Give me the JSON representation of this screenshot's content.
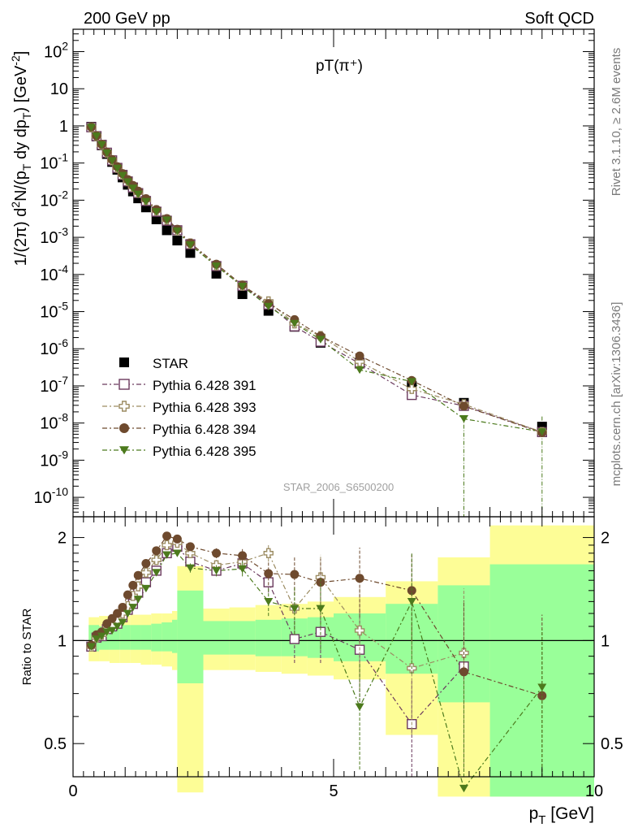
{
  "header": {
    "left": "200 GeV pp",
    "right": "Soft QCD",
    "plot_title": "pT(π⁺)",
    "side_top": "Rivet 3.1.10, ≥ 2.6M events",
    "side_bottom": "mcplots.cern.ch [arXiv:1306.3436]",
    "watermark": "STAR_2006_S6500200"
  },
  "chart_data": [
    {
      "type": "scatter",
      "panel": "main",
      "ylabel_parts": [
        "1/(2π) d",
        "2",
        "N/(p",
        "T",
        " dy dp",
        "T",
        ") [GeV",
        "-2",
        "]"
      ],
      "yscale": "log",
      "ylim": [
        3e-11,
        400
      ],
      "xlim": [
        0,
        10
      ],
      "y_ticks": [
        {
          "v": 1e-10,
          "b": "10",
          "e": "-10"
        },
        {
          "v": 1e-09,
          "b": "10",
          "e": "-9"
        },
        {
          "v": 1e-08,
          "b": "10",
          "e": "-8"
        },
        {
          "v": 1e-07,
          "b": "10",
          "e": "-7"
        },
        {
          "v": 1e-06,
          "b": "10",
          "e": "-6"
        },
        {
          "v": 1e-05,
          "b": "10",
          "e": "-5"
        },
        {
          "v": 0.0001,
          "b": "10",
          "e": "-4"
        },
        {
          "v": 0.001,
          "b": "10",
          "e": "-3"
        },
        {
          "v": 0.01,
          "b": "10",
          "e": "-2"
        },
        {
          "v": 0.1,
          "b": "10",
          "e": "-1"
        },
        {
          "v": 1,
          "b": "1",
          "e": ""
        },
        {
          "v": 10,
          "b": "10",
          "e": ""
        },
        {
          "v": 100,
          "b": "10",
          "e": "2"
        }
      ],
      "legend_position": "lower-left",
      "x": [
        0.35,
        0.45,
        0.55,
        0.65,
        0.75,
        0.85,
        0.95,
        1.05,
        1.15,
        1.25,
        1.4,
        1.6,
        1.8,
        2.0,
        2.25,
        2.75,
        3.25,
        3.75,
        4.25,
        4.75,
        5.5,
        6.5,
        7.5,
        9.0
      ],
      "series": [
        {
          "name": "STAR",
          "color": "#000000",
          "marker": "square-filled",
          "line": false,
          "values": [
            0.95,
            0.52,
            0.3,
            0.175,
            0.107,
            0.066,
            0.041,
            0.026,
            0.0172,
            0.0112,
            0.0064,
            0.00305,
            0.00155,
            0.00082,
            0.00038,
            0.000105,
            2.95e-05,
            1.05e-05,
            3.9e-06,
            1.45e-06,
            4.2e-07,
            1e-07,
            3.5e-08,
            8e-09
          ]
        },
        {
          "name": "Pythia 6.428 391",
          "color": "#6b3a5e",
          "marker": "square-open",
          "line": true,
          "values": [
            0.92,
            0.53,
            0.31,
            0.19,
            0.118,
            0.074,
            0.048,
            0.032,
            0.022,
            0.0155,
            0.0095,
            0.0049,
            0.0028,
            0.00155,
            0.00065,
            0.000168,
            4.95e-05,
            1.55e-05,
            4e-06,
            1.55e-06,
            4e-07,
            5.7e-08,
            2.9e-08,
            5.7e-09
          ]
        },
        {
          "name": "Pythia 6.428 393",
          "color": "#9c8c62",
          "marker": "cross-open",
          "line": true,
          "values": [
            0.91,
            0.53,
            0.31,
            0.19,
            0.118,
            0.075,
            0.049,
            0.033,
            0.023,
            0.016,
            0.0102,
            0.0053,
            0.003,
            0.00155,
            0.00068,
            0.000175,
            5e-05,
            1.88e-05,
            4.8e-06,
            2.2e-06,
            4.5e-07,
            8.3e-08,
            3.2e-08,
            5.7e-09
          ]
        },
        {
          "name": "Pythia 6.428 394",
          "color": "#6e4a2e",
          "marker": "circle-filled",
          "line": true,
          "values": [
            0.93,
            0.54,
            0.32,
            0.196,
            0.124,
            0.08,
            0.052,
            0.036,
            0.025,
            0.0175,
            0.011,
            0.0056,
            0.0032,
            0.00165,
            0.0007,
            0.00019,
            5.2e-05,
            1.65e-05,
            6.1e-06,
            2.2e-06,
            6.4e-07,
            1.4e-07,
            2.85e-08,
            5.5e-09
          ]
        },
        {
          "name": "Pythia 6.428 395",
          "color": "#4c7a1d",
          "marker": "triangle-down-filled",
          "line": true,
          "values": [
            0.91,
            0.53,
            0.31,
            0.185,
            0.115,
            0.072,
            0.046,
            0.031,
            0.021,
            0.0145,
            0.0092,
            0.0049,
            0.0029,
            0.00148,
            0.00062,
            0.000168,
            4.8e-05,
            1.38e-05,
            4.8e-06,
            1.78e-06,
            2.7e-07,
            1.3e-07,
            1.3e-08,
            5.8e-09
          ]
        }
      ]
    },
    {
      "type": "scatter",
      "panel": "ratio",
      "ylabel": "Ratio to STAR",
      "xlabel_main": "p",
      "xlabel_sub": "T",
      "xlabel_unit": " [GeV]",
      "yscale": "log",
      "ylim": [
        0.4,
        2.3
      ],
      "xlim": [
        0,
        10
      ],
      "x_ticks": [
        {
          "v": 0,
          "label": "0"
        },
        {
          "v": 5,
          "label": "5"
        },
        {
          "v": 10,
          "label": "10"
        }
      ],
      "y_ticks": [
        {
          "v": 0.5,
          "label": "0.5"
        },
        {
          "v": 1,
          "label": "1"
        },
        {
          "v": 2,
          "label": "2"
        }
      ],
      "bands": [
        {
          "x0": 0.3,
          "x1": 0.5,
          "g": [
            0.93,
            1.11
          ],
          "y": [
            0.87,
            1.17
          ]
        },
        {
          "x0": 0.5,
          "x1": 0.7,
          "g": [
            0.94,
            1.1
          ],
          "y": [
            0.87,
            1.18
          ]
        },
        {
          "x0": 0.7,
          "x1": 0.9,
          "g": [
            0.94,
            1.1
          ],
          "y": [
            0.86,
            1.18
          ]
        },
        {
          "x0": 0.9,
          "x1": 1.1,
          "g": [
            0.94,
            1.11
          ],
          "y": [
            0.86,
            1.18
          ]
        },
        {
          "x0": 1.1,
          "x1": 1.3,
          "g": [
            0.94,
            1.11
          ],
          "y": [
            0.86,
            1.19
          ]
        },
        {
          "x0": 1.3,
          "x1": 1.5,
          "g": [
            0.94,
            1.11
          ],
          "y": [
            0.85,
            1.19
          ]
        },
        {
          "x0": 1.5,
          "x1": 1.7,
          "g": [
            0.93,
            1.12
          ],
          "y": [
            0.85,
            1.2
          ]
        },
        {
          "x0": 1.7,
          "x1": 1.9,
          "g": [
            0.93,
            1.13
          ],
          "y": [
            0.84,
            1.2
          ]
        },
        {
          "x0": 1.9,
          "x1": 2.0,
          "g": [
            0.92,
            1.15
          ],
          "y": [
            0.82,
            1.22
          ]
        },
        {
          "x0": 2.0,
          "x1": 2.5,
          "g": [
            0.75,
            1.4
          ],
          "y": [
            0.36,
            1.65
          ]
        },
        {
          "x0": 2.5,
          "x1": 3.0,
          "g": [
            0.91,
            1.14
          ],
          "y": [
            0.82,
            1.24
          ]
        },
        {
          "x0": 3.0,
          "x1": 3.5,
          "g": [
            0.91,
            1.14
          ],
          "y": [
            0.82,
            1.25
          ]
        },
        {
          "x0": 3.5,
          "x1": 4.0,
          "g": [
            0.9,
            1.15
          ],
          "y": [
            0.81,
            1.27
          ]
        },
        {
          "x0": 4.0,
          "x1": 4.5,
          "g": [
            0.9,
            1.16
          ],
          "y": [
            0.8,
            1.28
          ]
        },
        {
          "x0": 4.5,
          "x1": 5.0,
          "g": [
            0.89,
            1.17
          ],
          "y": [
            0.79,
            1.3
          ]
        },
        {
          "x0": 5.0,
          "x1": 6.0,
          "g": [
            0.87,
            1.2
          ],
          "y": [
            0.77,
            1.34
          ]
        },
        {
          "x0": 6.0,
          "x1": 7.0,
          "g": [
            0.8,
            1.28
          ],
          "y": [
            0.53,
            1.49
          ]
        },
        {
          "x0": 7.0,
          "x1": 8.0,
          "g": [
            0.66,
            1.45
          ],
          "y": [
            0.35,
            1.75
          ]
        },
        {
          "x0": 8.0,
          "x1": 10.0,
          "g": [
            0.35,
            1.67
          ],
          "y": [
            0.35,
            2.17
          ]
        }
      ],
      "x": [
        0.35,
        0.45,
        0.55,
        0.65,
        0.75,
        0.85,
        0.95,
        1.05,
        1.15,
        1.25,
        1.4,
        1.6,
        1.8,
        2.0,
        2.25,
        2.75,
        3.25,
        3.75,
        4.25,
        4.75,
        5.5,
        6.5,
        7.5,
        9.0
      ],
      "series": [
        {
          "name": "Pythia 6.428 391",
          "color": "#6b3a5e",
          "marker": "square-open",
          "values": [
            0.96,
            1.02,
            1.03,
            1.08,
            1.1,
            1.12,
            1.17,
            1.23,
            1.28,
            1.38,
            1.48,
            1.6,
            1.8,
            1.88,
            1.7,
            1.6,
            1.68,
            1.48,
            1.01,
            1.06,
            0.94,
            0.57,
            0.84,
            null
          ],
          "err": [
            0.02,
            0.02,
            0.02,
            0.02,
            0.02,
            0.02,
            0.02,
            0.02,
            0.02,
            0.02,
            0.03,
            0.03,
            0.04,
            0.04,
            0.04,
            0.05,
            0.07,
            0.1,
            0.15,
            0.2,
            0.3,
            0.2,
            0.4,
            null
          ]
        },
        {
          "name": "Pythia 6.428 393",
          "color": "#9c8c62",
          "marker": "cross-open",
          "values": [
            0.96,
            1.02,
            1.04,
            1.08,
            1.1,
            1.14,
            1.2,
            1.26,
            1.35,
            1.44,
            1.58,
            1.72,
            1.9,
            1.93,
            1.8,
            1.66,
            1.7,
            1.8,
            1.24,
            1.53,
            1.07,
            0.83,
            0.92,
            null
          ],
          "err": [
            0.02,
            0.02,
            0.02,
            0.02,
            0.02,
            0.02,
            0.02,
            0.02,
            0.02,
            0.03,
            0.03,
            0.03,
            0.04,
            0.04,
            0.05,
            0.06,
            0.08,
            0.1,
            0.2,
            0.25,
            0.35,
            0.3,
            0.5,
            null
          ]
        },
        {
          "name": "Pythia 6.428 394",
          "color": "#6e4a2e",
          "marker": "circle-filled",
          "values": [
            0.97,
            1.04,
            1.06,
            1.12,
            1.16,
            1.2,
            1.25,
            1.36,
            1.45,
            1.55,
            1.68,
            1.83,
            2.02,
            1.98,
            1.88,
            1.8,
            1.77,
            1.57,
            1.56,
            1.48,
            1.52,
            1.4,
            0.81,
            0.69
          ],
          "err": [
            0.02,
            0.02,
            0.02,
            0.02,
            0.02,
            0.02,
            0.02,
            0.02,
            0.02,
            0.03,
            0.03,
            0.03,
            0.04,
            0.04,
            0.05,
            0.06,
            0.08,
            0.12,
            0.2,
            0.25,
            0.35,
            0.4,
            0.5,
            0.5
          ]
        },
        {
          "name": "Pythia 6.428 395",
          "color": "#4c7a1d",
          "marker": "triangle-down-filled",
          "values": [
            0.96,
            1.01,
            1.03,
            1.06,
            1.07,
            1.1,
            1.13,
            1.2,
            1.25,
            1.32,
            1.42,
            1.58,
            1.78,
            1.8,
            1.63,
            1.6,
            1.62,
            1.3,
            1.24,
            1.24,
            0.64,
            1.3,
            0.37,
            0.73
          ],
          "err": [
            0.02,
            0.02,
            0.02,
            0.02,
            0.02,
            0.02,
            0.02,
            0.02,
            0.02,
            0.03,
            0.03,
            0.03,
            0.04,
            0.04,
            0.05,
            0.06,
            0.08,
            0.12,
            0.2,
            0.3,
            0.22,
            0.5,
            0.4,
            0.35
          ]
        }
      ]
    }
  ]
}
